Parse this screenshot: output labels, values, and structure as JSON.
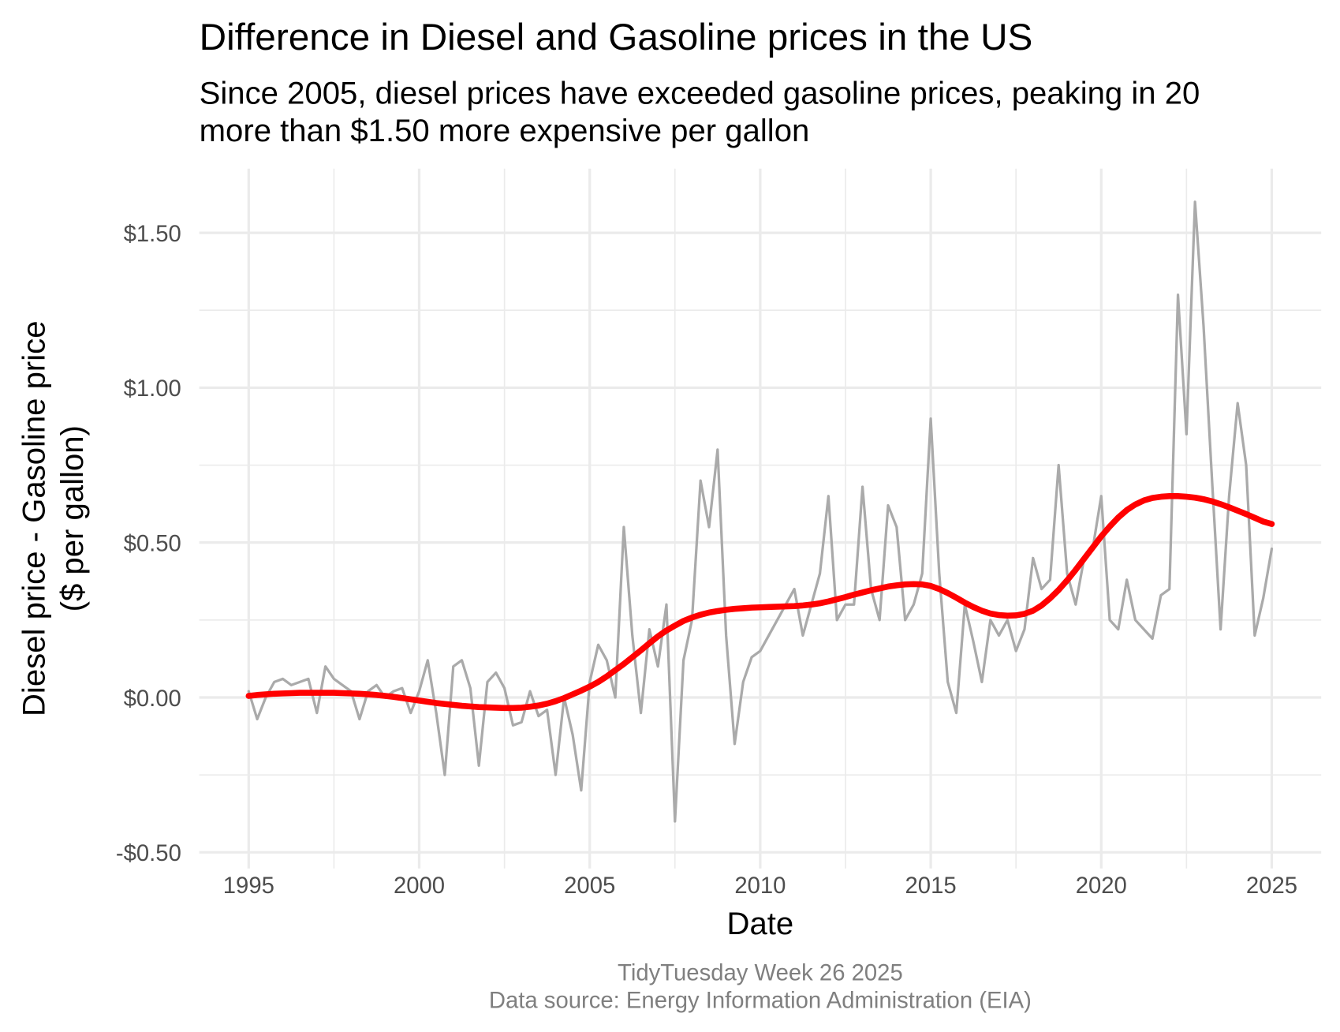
{
  "chart_data": {
    "type": "line",
    "title": "Difference in Diesel and Gasoline prices in the US",
    "subtitle": [
      "Since 2005, diesel prices have exceeded gasoline prices, peaking in 20",
      "more than $1.50 more expensive per gallon"
    ],
    "x_label": "Date",
    "y_label": [
      "Diesel price - Gasoline price",
      "($ per gallon)"
    ],
    "caption": [
      "TidyTuesday Week 26 2025",
      "Data source: Energy Information Administration (EIA)"
    ],
    "xlim": [
      1993.55,
      2026.45
    ],
    "xticks": [
      1995,
      2000,
      2005,
      2010,
      2015,
      2020,
      2025
    ],
    "ylim": [
      -0.552,
      1.707
    ],
    "yticks": [
      {
        "value": -0.5,
        "label": "-$0.50"
      },
      {
        "value": 0,
        "label": "$0.00"
      },
      {
        "value": 0.5,
        "label": "$0.50"
      },
      {
        "value": 1,
        "label": "$1.00"
      },
      {
        "value": 1.5,
        "label": "$1.50"
      }
    ],
    "grid": true,
    "x": [
      1995,
      1995.25,
      1995.5,
      1995.75,
      1996,
      1996.25,
      1996.5,
      1996.75,
      1997,
      1997.25,
      1997.5,
      1997.75,
      1998,
      1998.25,
      1998.5,
      1998.75,
      1999,
      1999.25,
      1999.5,
      1999.75,
      2000,
      2000.25,
      2000.5,
      2000.75,
      2001,
      2001.25,
      2001.5,
      2001.75,
      2002,
      2002.25,
      2002.5,
      2002.75,
      2003,
      2003.25,
      2003.5,
      2003.75,
      2004,
      2004.25,
      2004.5,
      2004.75,
      2005,
      2005.25,
      2005.5,
      2005.75,
      2006,
      2006.25,
      2006.5,
      2006.75,
      2007,
      2007.25,
      2007.5,
      2007.75,
      2008,
      2008.25,
      2008.5,
      2008.75,
      2009,
      2009.25,
      2009.5,
      2009.75,
      2010,
      2010.25,
      2010.5,
      2010.75,
      2011,
      2011.25,
      2011.5,
      2011.75,
      2012,
      2012.25,
      2012.5,
      2012.75,
      2013,
      2013.25,
      2013.5,
      2013.75,
      2014,
      2014.25,
      2014.5,
      2014.75,
      2015,
      2015.25,
      2015.5,
      2015.75,
      2016,
      2016.25,
      2016.5,
      2016.75,
      2017,
      2017.25,
      2017.5,
      2017.75,
      2018,
      2018.25,
      2018.5,
      2018.75,
      2019,
      2019.25,
      2019.5,
      2019.75,
      2020,
      2020.25,
      2020.5,
      2020.75,
      2021,
      2021.25,
      2021.5,
      2021.75,
      2022,
      2022.25,
      2022.5,
      2022.75,
      2023,
      2023.25,
      2023.5,
      2023.75,
      2024,
      2024.25,
      2024.5,
      2024.75,
      2025
    ],
    "series": [
      {
        "color": "#aaaaaa",
        "width": 3,
        "values": [
          0.02,
          -0.07,
          0.0,
          0.05,
          0.06,
          0.04,
          0.05,
          0.06,
          -0.05,
          0.1,
          0.06,
          0.04,
          0.02,
          -0.07,
          0.02,
          0.04,
          0.0,
          0.02,
          0.03,
          -0.05,
          0.02,
          0.12,
          -0.05,
          -0.25,
          0.1,
          0.12,
          0.03,
          -0.22,
          0.05,
          0.08,
          0.03,
          -0.09,
          -0.08,
          0.02,
          -0.06,
          -0.04,
          -0.25,
          0.0,
          -0.12,
          -0.3,
          0.05,
          0.17,
          0.12,
          0.0,
          0.55,
          0.2,
          -0.05,
          0.22,
          0.1,
          0.3,
          -0.4,
          0.12,
          0.25,
          0.7,
          0.55,
          0.8,
          0.2,
          -0.15,
          0.05,
          0.13,
          0.15,
          0.2,
          0.25,
          0.3,
          0.35,
          0.2,
          0.3,
          0.4,
          0.65,
          0.25,
          0.3,
          0.3,
          0.68,
          0.35,
          0.25,
          0.62,
          0.55,
          0.25,
          0.3,
          0.4,
          0.9,
          0.4,
          0.05,
          -0.05,
          0.3,
          0.18,
          0.05,
          0.25,
          0.2,
          0.25,
          0.15,
          0.22,
          0.45,
          0.35,
          0.38,
          0.75,
          0.4,
          0.3,
          0.45,
          0.48,
          0.65,
          0.25,
          0.22,
          0.38,
          0.25,
          0.22,
          0.19,
          0.33,
          0.35,
          1.3,
          0.85,
          1.6,
          1.2,
          0.7,
          0.22,
          0.65,
          0.95,
          0.75,
          0.2,
          0.32,
          0.48
        ]
      },
      {
        "color": "#ff0000",
        "width": 7,
        "values": [
          0.005,
          0.008,
          0.01,
          0.012,
          0.013,
          0.014,
          0.015,
          0.015,
          0.015,
          0.015,
          0.015,
          0.014,
          0.013,
          0.012,
          0.01,
          0.008,
          0.005,
          0.002,
          -0.002,
          -0.006,
          -0.01,
          -0.014,
          -0.018,
          -0.021,
          -0.024,
          -0.027,
          -0.029,
          -0.031,
          -0.032,
          -0.033,
          -0.034,
          -0.034,
          -0.033,
          -0.03,
          -0.026,
          -0.02,
          -0.012,
          -0.002,
          0.01,
          0.022,
          0.035,
          0.05,
          0.068,
          0.088,
          0.108,
          0.13,
          0.152,
          0.175,
          0.197,
          0.216,
          0.232,
          0.247,
          0.258,
          0.267,
          0.274,
          0.279,
          0.283,
          0.286,
          0.288,
          0.29,
          0.291,
          0.292,
          0.293,
          0.294,
          0.295,
          0.297,
          0.3,
          0.304,
          0.31,
          0.317,
          0.324,
          0.332,
          0.339,
          0.346,
          0.352,
          0.358,
          0.362,
          0.365,
          0.366,
          0.365,
          0.36,
          0.35,
          0.337,
          0.322,
          0.306,
          0.292,
          0.28,
          0.271,
          0.266,
          0.264,
          0.265,
          0.27,
          0.28,
          0.297,
          0.32,
          0.347,
          0.378,
          0.412,
          0.448,
          0.484,
          0.52,
          0.552,
          0.581,
          0.605,
          0.623,
          0.636,
          0.644,
          0.648,
          0.65,
          0.65,
          0.648,
          0.645,
          0.64,
          0.633,
          0.624,
          0.614,
          0.603,
          0.592,
          0.58,
          0.568,
          0.56
        ]
      }
    ]
  }
}
